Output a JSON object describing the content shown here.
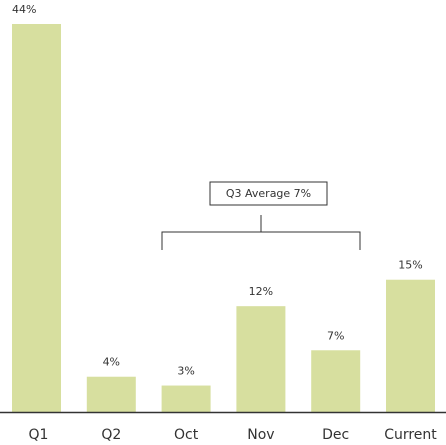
{
  "chart_data": {
    "type": "bar",
    "categories": [
      "Q1",
      "Q2",
      "Oct",
      "Nov",
      "Dec",
      "Current"
    ],
    "values": [
      44,
      4,
      3,
      12,
      7,
      15
    ],
    "value_labels": [
      "44%",
      "4%",
      "3%",
      "12%",
      "7%",
      "15%"
    ],
    "color": "#d7df9f",
    "annotation": "Q3 Average 7%"
  }
}
